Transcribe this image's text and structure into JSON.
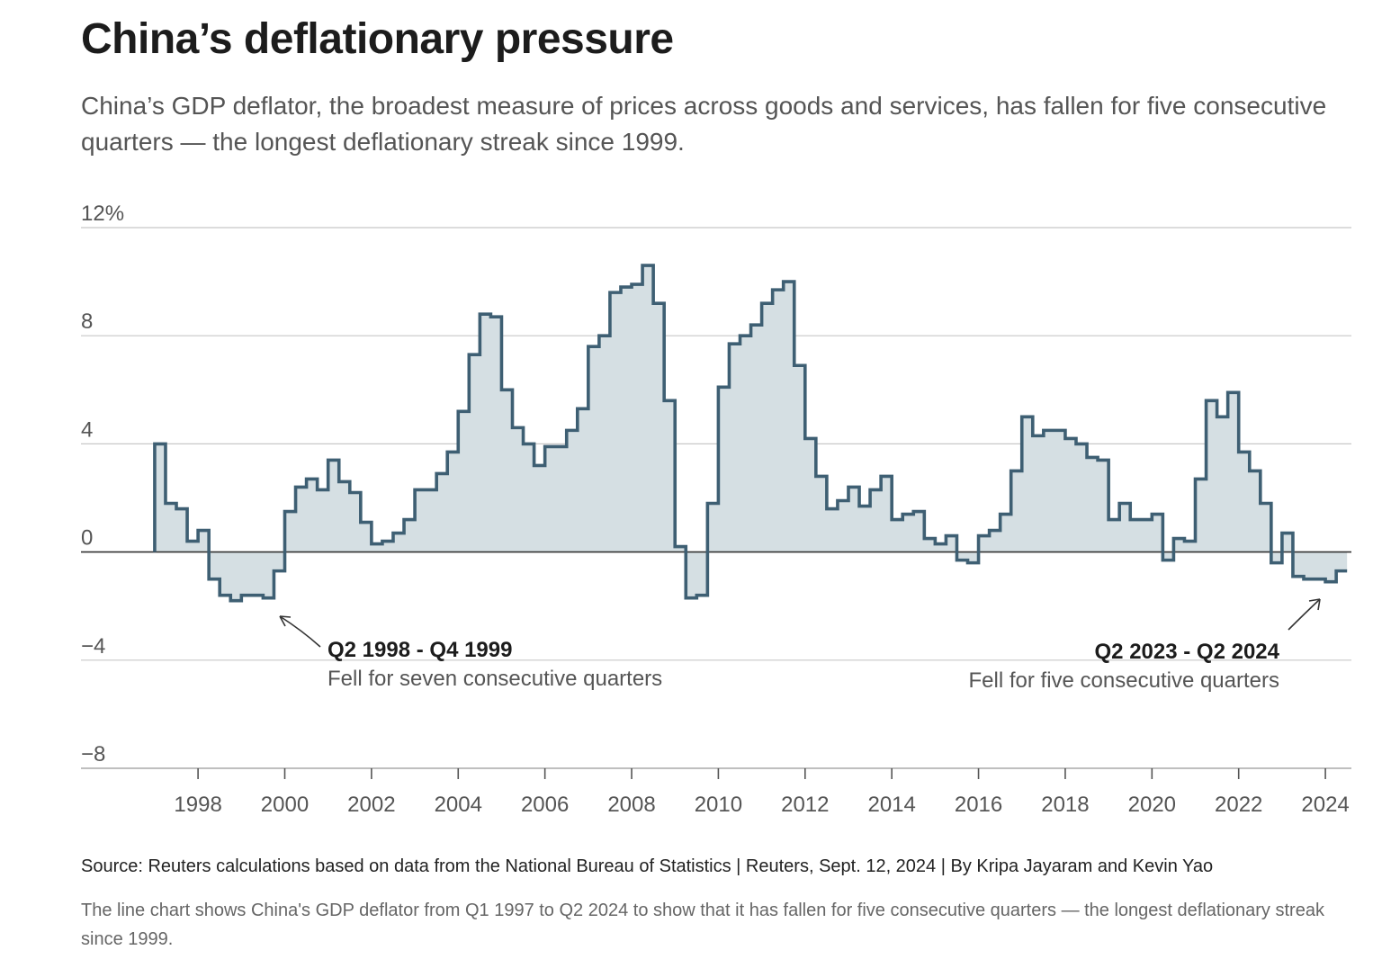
{
  "header": {
    "title": "China’s deflationary pressure",
    "subtitle": "China’s GDP deflator, the broadest measure of prices across goods and services, has fallen for five consecutive quarters — the longest deflationary streak since 1999."
  },
  "footer": {
    "source": "Source: Reuters calculations based on data from the National Bureau of Statistics | Reuters, Sept. 12, 2024 | By Kripa Jayaram and Kevin Yao",
    "note": "The line chart shows China's GDP deflator from Q1 1997 to Q2 2024 to show that it has fallen for five consecutive quarters — the longest deflationary streak since 1999."
  },
  "colors": {
    "line": "#3e5f73",
    "area": "#d5dfe3",
    "grid": "#c8c8c8",
    "zero_line": "#333333"
  },
  "chart_data": {
    "type": "line",
    "step": true,
    "ylim": [
      -8,
      12
    ],
    "y_ticks": [
      12,
      8,
      4,
      0,
      -4,
      -8
    ],
    "y_tick_labels": [
      "12%",
      "8",
      "4",
      "0",
      "−4",
      "−8"
    ],
    "xlim": [
      1995.3,
      2024.6
    ],
    "x_ticks": [
      1998,
      2000,
      2002,
      2004,
      2006,
      2008,
      2010,
      2012,
      2014,
      2016,
      2018,
      2020,
      2022,
      2024
    ],
    "x_tick_labels": [
      "1998",
      "2000",
      "2002",
      "2004",
      "2006",
      "2008",
      "2010",
      "2012",
      "2014",
      "2016",
      "2018",
      "2020",
      "2022",
      "2024"
    ],
    "grid": "horizontal",
    "series": [
      {
        "start": "Q1 1997",
        "end": "Q2 2024",
        "values": [
          4.0,
          1.8,
          1.6,
          0.4,
          0.8,
          -1.0,
          -1.6,
          -1.8,
          -1.6,
          -1.6,
          -1.7,
          -0.7,
          1.5,
          2.4,
          2.7,
          2.3,
          3.4,
          2.6,
          2.2,
          1.1,
          0.3,
          0.4,
          0.7,
          1.2,
          2.3,
          2.3,
          2.9,
          3.7,
          5.2,
          7.3,
          8.8,
          8.7,
          6.0,
          4.6,
          4.0,
          3.2,
          3.9,
          3.9,
          4.5,
          5.3,
          7.6,
          8.0,
          9.6,
          9.8,
          9.9,
          10.6,
          9.2,
          5.6,
          0.2,
          -1.7,
          -1.6,
          1.8,
          6.1,
          7.7,
          8.0,
          8.4,
          9.2,
          9.7,
          10.0,
          6.9,
          4.2,
          2.8,
          1.6,
          1.9,
          2.4,
          1.7,
          2.3,
          2.8,
          1.2,
          1.4,
          1.5,
          0.5,
          0.3,
          0.6,
          -0.3,
          -0.4,
          0.6,
          0.8,
          1.4,
          3.0,
          5.0,
          4.3,
          4.5,
          4.5,
          4.2,
          4.0,
          3.5,
          3.4,
          1.2,
          1.8,
          1.2,
          1.2,
          1.4,
          -0.3,
          0.5,
          0.4,
          2.7,
          5.6,
          5.0,
          5.9,
          3.7,
          3.0,
          1.8,
          -0.4,
          0.7,
          -0.9,
          -1.0,
          -1.0,
          -1.1,
          -0.7
        ]
      }
    ],
    "annotations": [
      {
        "title": "Q2 1998 - Q4 1999",
        "text": "Fell for seven consecutive quarters"
      },
      {
        "title": "Q2 2023 - Q2 2024",
        "text": "Fell for five consecutive quarters"
      }
    ]
  }
}
